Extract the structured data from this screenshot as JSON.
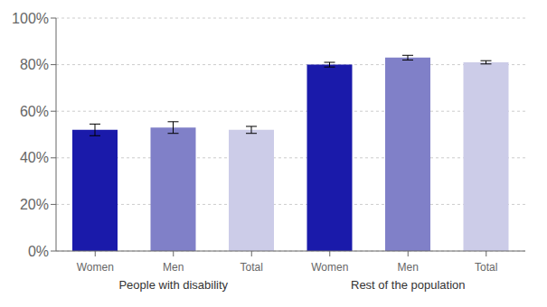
{
  "chart_data": {
    "type": "bar",
    "groups": [
      "People with disability",
      "Rest of the population"
    ],
    "categories": [
      "Women",
      "Men",
      "Total",
      "Women",
      "Men",
      "Total"
    ],
    "values": [
      52,
      53,
      52,
      80,
      83,
      81
    ],
    "errors": [
      2.5,
      2.5,
      1.5,
      1.0,
      1.0,
      0.7
    ],
    "colors": [
      "#1A1AAA",
      "#8080C8",
      "#CCCCE8",
      "#1A1AAA",
      "#8080C8",
      "#CCCCE8"
    ],
    "ylim": [
      0,
      100
    ],
    "yticks": [
      {
        "value": 0,
        "label": "0%"
      },
      {
        "value": 20,
        "label": "20%"
      },
      {
        "value": 40,
        "label": "40%"
      },
      {
        "value": 60,
        "label": "60%"
      },
      {
        "value": 80,
        "label": "80%"
      },
      {
        "value": 100,
        "label": "100%"
      }
    ],
    "grid": true
  }
}
